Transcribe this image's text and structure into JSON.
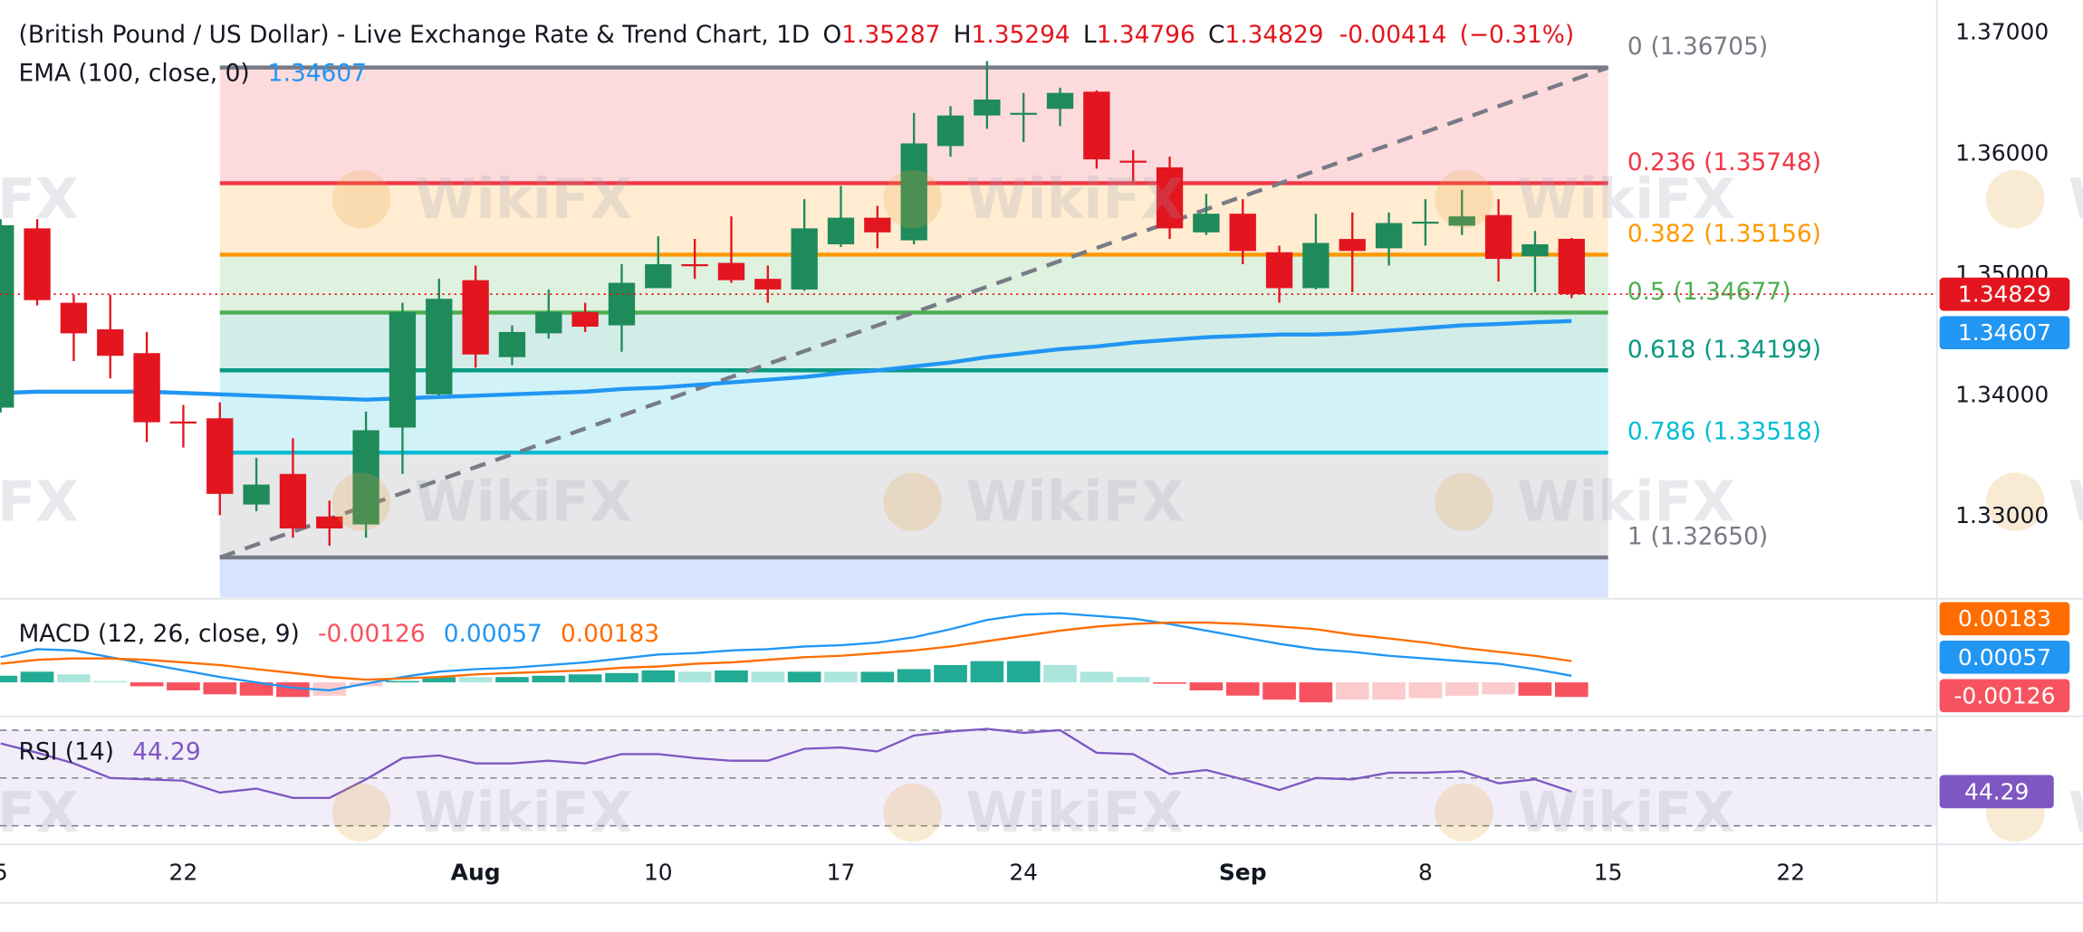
{
  "chart_data": [
    {
      "type": "candlestick",
      "title": "(British Pound / US Dollar) - Live Exchange Rate & Trend Chart, 1D",
      "ohlc_labels": [
        "O",
        "H",
        "L",
        "C"
      ],
      "change": -0.00414,
      "change_pct": {
        "value": -0.31,
        "label": "(−0.31%)"
      },
      "categories": [
        "5",
        null,
        null,
        null,
        null,
        "22",
        null,
        null,
        null,
        null,
        null,
        null,
        null,
        "Aug",
        null,
        null,
        null,
        null,
        "10",
        null,
        null,
        null,
        null,
        "17",
        null,
        null,
        null,
        null,
        "24",
        null,
        null,
        null,
        null,
        null,
        "Sep",
        null,
        null,
        null,
        null,
        "8",
        null,
        null,
        null,
        null,
        "15",
        null,
        null,
        null,
        null,
        "22"
      ],
      "open": [
        1.3389,
        1.35374,
        1.34758,
        1.34538,
        1.34341,
        1.33775,
        1.33802,
        1.33088,
        1.33341,
        1.32989,
        1.32923,
        1.33725,
        1.34,
        1.34945,
        1.34308,
        1.34505,
        1.34681,
        1.34571,
        1.34879,
        1.35077,
        1.35088,
        1.34956,
        1.34868,
        1.35242,
        1.35462,
        1.35275,
        1.36055,
        1.36308,
        1.36319,
        1.36363,
        1.36505,
        1.35934,
        1.35879,
        1.35341,
        1.35495,
        1.35176,
        1.34879,
        1.35286,
        1.35209,
        1.35418,
        1.35396,
        1.35484,
        1.35143,
        1.35287,
        null,
        null,
        null,
        null,
        null,
        null
      ],
      "high": [
        1.3545,
        1.35451,
        1.34824,
        1.34824,
        1.34516,
        1.33912,
        1.33934,
        1.33473,
        1.33637,
        1.33121,
        1.33857,
        1.34758,
        1.34956,
        1.35066,
        1.34571,
        1.34868,
        1.34758,
        1.35077,
        1.35308,
        1.35286,
        1.35473,
        1.35066,
        1.35615,
        1.35725,
        1.3556,
        1.3633,
        1.36385,
        1.36758,
        1.36495,
        1.36538,
        1.36516,
        1.36022,
        1.35967,
        1.35659,
        1.35615,
        1.35231,
        1.35495,
        1.35505,
        1.35505,
        1.35615,
        1.35692,
        1.35615,
        1.35352,
        1.35294,
        null,
        null,
        null,
        null,
        null,
        null
      ],
      "low": [
        1.3385,
        1.34736,
        1.34275,
        1.34132,
        1.33604,
        1.3356,
        1.33,
        1.33033,
        1.32813,
        1.32747,
        1.32813,
        1.33341,
        1.33989,
        1.3422,
        1.34242,
        1.34462,
        1.34516,
        1.34352,
        1.34879,
        1.34956,
        1.34923,
        1.34758,
        1.34857,
        1.3522,
        1.35209,
        1.35242,
        1.35967,
        1.36198,
        1.36088,
        1.3622,
        1.35868,
        1.35758,
        1.35286,
        1.35319,
        1.35077,
        1.34758,
        1.34868,
        1.34846,
        1.35066,
        1.35231,
        1.35319,
        1.34934,
        1.34846,
        1.34796,
        null,
        null,
        null,
        null,
        null,
        null
      ],
      "close": [
        1.354,
        1.3478,
        1.34505,
        1.34319,
        1.33769,
        1.33765,
        1.33176,
        1.33253,
        1.3289,
        1.3289,
        1.33703,
        1.34681,
        1.34791,
        1.3433,
        1.34516,
        1.34681,
        1.3456,
        1.34923,
        1.35077,
        1.35066,
        1.34945,
        1.34868,
        1.35374,
        1.35462,
        1.35341,
        1.36077,
        1.36308,
        1.3644,
        1.3633,
        1.36495,
        1.35945,
        1.35923,
        1.35374,
        1.35495,
        1.35187,
        1.34879,
        1.35253,
        1.35187,
        1.35418,
        1.35429,
        1.35473,
        1.35121,
        1.35242,
        1.34829,
        null,
        null,
        null,
        null,
        null,
        null
      ],
      "up_color": "#1f8a5a",
      "down_color": "#e3151e",
      "ylim": [
        1.32319,
        1.37264
      ],
      "yticks": [
        {
          "value": 1.33,
          "label": "1.33000"
        },
        {
          "value": 1.34,
          "label": "1.34000"
        },
        {
          "value": 1.35,
          "label": "1.35000"
        },
        {
          "value": 1.36,
          "label": "1.36000"
        },
        {
          "value": 1.37,
          "label": "1.37000"
        }
      ],
      "ema": {
        "title": "EMA (100, close, 0)",
        "color": "#2196f3",
        "values": [
          1.34011,
          1.34022,
          1.34022,
          1.34022,
          1.34022,
          1.34011,
          1.34,
          1.33989,
          1.33978,
          1.33967,
          1.33956,
          1.33967,
          1.33978,
          1.33989,
          1.34,
          1.34011,
          1.34022,
          1.34044,
          1.34055,
          1.34077,
          1.34099,
          1.34121,
          1.34143,
          1.34176,
          1.34198,
          1.34231,
          1.34264,
          1.34308,
          1.34341,
          1.34374,
          1.34396,
          1.34429,
          1.34451,
          1.34473,
          1.34484,
          1.34495,
          1.34495,
          1.34505,
          1.34527,
          1.34549,
          1.34571,
          1.34582,
          1.34596,
          1.34607,
          null,
          null,
          null,
          null,
          null,
          null
        ]
      },
      "fib": {
        "levels": [
          {
            "ratio": 0,
            "price": {
              "value": 1.36705,
              "label": "(1.36705)"
            },
            "color": "#787b86"
          },
          {
            "ratio": 0.236,
            "price": {
              "value": 1.35748,
              "label": "(1.35748)"
            },
            "color": "#f23645"
          },
          {
            "ratio": 0.382,
            "price": {
              "value": 1.35156,
              "label": "(1.35156)"
            },
            "color": "#ff9800"
          },
          {
            "ratio": 0.5,
            "price": {
              "value": 1.34677,
              "label": "(1.34677)"
            },
            "color": "#4caf50"
          },
          {
            "ratio": 0.618,
            "price": {
              "value": 1.34199,
              "label": "(1.34199)"
            },
            "color": "#089981"
          },
          {
            "ratio": 0.786,
            "price": {
              "value": 1.33518,
              "label": "(1.33518)"
            },
            "color": "#00bcd4"
          },
          {
            "ratio": 1,
            "price": {
              "value": 1.3265,
              "label": "(1.32650)"
            },
            "color": "#787b86"
          }
        ]
      },
      "watermark": "WikiFX"
    },
    {
      "type": "macd",
      "title": "MACD (12, 26, close, 9)",
      "ylim": [
        -0.00275,
        0.00709
      ],
      "histogram": {
        "colors": {
          "grow_above": "#22ab94",
          "fall_above": "#ace5dc",
          "grow_below": "#fccbcd",
          "fall_below": "#f7525f"
        },
        "values": [
          0.00057,
          0.00092,
          0.00069,
          0.00011,
          -0.00034,
          -0.00069,
          -0.00103,
          -0.00114,
          -0.00126,
          -0.00115,
          -0.00034,
          0.00012,
          0.00046,
          0.00045,
          0.00046,
          0.00057,
          0.00069,
          0.0008,
          0.00103,
          0.00092,
          0.00103,
          0.00092,
          0.00092,
          0.00091,
          0.00091,
          0.00114,
          0.00149,
          0.00183,
          0.00183,
          0.00149,
          0.00091,
          0.00046,
          -0.00012,
          -0.00069,
          -0.00114,
          -0.00149,
          -0.00172,
          -0.00149,
          -0.00149,
          -0.00137,
          -0.00115,
          -0.00103,
          -0.00115,
          -0.00126,
          null,
          null,
          null,
          null,
          null,
          null
        ]
      },
      "macd": {
        "color": "#2196f3",
        "values": [
          0.00217,
          0.00286,
          0.00275,
          0.00217,
          0.0016,
          0.00103,
          0.00046,
          0,
          -0.00046,
          -0.00069,
          -0.00011,
          0.00046,
          0.00092,
          0.00114,
          0.00126,
          0.00149,
          0.00172,
          0.00206,
          0.0024,
          0.00252,
          0.00275,
          0.00286,
          0.00309,
          0.0032,
          0.00343,
          0.00389,
          0.00458,
          0.00538,
          0.00583,
          0.00595,
          0.00572,
          0.00549,
          0.00503,
          0.00446,
          0.00389,
          0.00332,
          0.00286,
          0.00263,
          0.00229,
          0.00206,
          0.00183,
          0.0016,
          0.00114,
          0.00057,
          null,
          null,
          null,
          null,
          null,
          null
        ]
      },
      "signal": {
        "color": "#ff6d00",
        "values": [
          0.0016,
          0.00194,
          0.00206,
          0.00206,
          0.00194,
          0.00172,
          0.00149,
          0.00114,
          0.0008,
          0.00046,
          0.00023,
          0.00034,
          0.00046,
          0.00069,
          0.0008,
          0.00092,
          0.00103,
          0.00126,
          0.00137,
          0.0016,
          0.00172,
          0.00194,
          0.00217,
          0.00229,
          0.00252,
          0.00275,
          0.00309,
          0.00355,
          0.004,
          0.00446,
          0.00481,
          0.00503,
          0.00515,
          0.00515,
          0.00503,
          0.00481,
          0.00458,
          0.00412,
          0.00378,
          0.00343,
          0.00298,
          0.00263,
          0.00229,
          0.00183,
          null,
          null,
          null,
          null,
          null,
          null
        ]
      }
    },
    {
      "type": "rsi",
      "title": "RSI (14)",
      "color": "#7e57c2",
      "ylim": [
        26.67,
        75
      ],
      "levels": [
        70,
        50,
        30
      ],
      "values": [
        64.44,
        60.56,
        56.11,
        50,
        49.44,
        48.89,
        43.89,
        45.56,
        41.67,
        41.67,
        49.44,
        58.33,
        59.44,
        56.11,
        56.11,
        57.22,
        56.11,
        60,
        60,
        58.33,
        57.22,
        57.22,
        62.22,
        62.78,
        61.11,
        67.78,
        69.44,
        70.56,
        68.89,
        70,
        60.56,
        60,
        51.67,
        53.33,
        49.44,
        45,
        50,
        49.44,
        52.22,
        52.22,
        52.78,
        47.78,
        49.44,
        44.29,
        null,
        null,
        null,
        null,
        null,
        null
      ]
    }
  ]
}
